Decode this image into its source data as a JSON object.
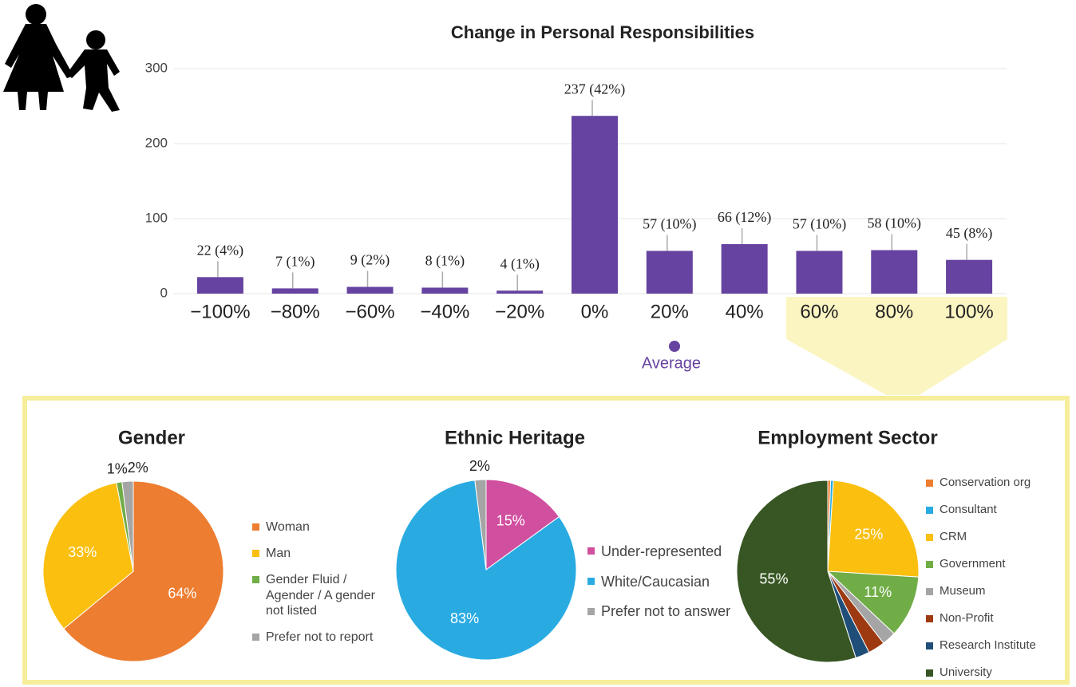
{
  "chart_data": [
    {
      "type": "bar",
      "title": "Change in Personal Responsibilities",
      "categories": [
        "−100%",
        "−80%",
        "−60%",
        "−40%",
        "−20%",
        "0%",
        "20%",
        "40%",
        "60%",
        "80%",
        "100%"
      ],
      "values": [
        22,
        7,
        9,
        8,
        4,
        237,
        57,
        66,
        57,
        58,
        45
      ],
      "value_labels": [
        "22 (4%)",
        "7 (1%)",
        "9 (2%)",
        "8 (1%)",
        "4 (1%)",
        "237 (42%)",
        "57 (10%)",
        "66 (12%)",
        "57 (10%)",
        "58 (10%)",
        "45 (8%)"
      ],
      "color": "#6643a0",
      "ylim": [
        0,
        300
      ],
      "yticks": [
        0,
        100,
        200,
        300
      ],
      "grid": true,
      "annotation": "Average"
    },
    {
      "type": "pie",
      "title": "Gender",
      "categories": [
        "Woman",
        "Man",
        "Gender Fluid / Agender / A gender not listed",
        "Prefer not to report"
      ],
      "values": [
        64,
        33,
        1,
        2
      ],
      "value_labels": [
        "64%",
        "33%",
        "1%",
        "2%"
      ],
      "colors": [
        "#ed7d31",
        "#fbbf10",
        "#70ad47",
        "#a5a5a5"
      ]
    },
    {
      "type": "pie",
      "title": "Ethnic Heritage",
      "categories": [
        "Under-represented",
        "White/Caucasian",
        "Prefer not to answer"
      ],
      "values": [
        15,
        83,
        2
      ],
      "value_labels": [
        "15%",
        "83%",
        "2%"
      ],
      "colors": [
        "#d14f9f",
        "#29abe2",
        "#a5a5a5"
      ]
    },
    {
      "type": "pie",
      "title": "Employment Sector",
      "categories": [
        "Conservation org",
        "Consultant",
        "CRM",
        "Government",
        "Museum",
        "Non-Profit",
        "Research Institute",
        "University"
      ],
      "values": [
        0.5,
        0.5,
        25,
        11,
        2.5,
        3,
        2.5,
        55
      ],
      "value_labels": [
        null,
        null,
        "25%",
        "11%",
        null,
        null,
        null,
        "55%"
      ],
      "colors": [
        "#ed7d31",
        "#29abe2",
        "#fbbf10",
        "#70ad47",
        "#a5a5a5",
        "#9e3a12",
        "#1f4e79",
        "#375623"
      ]
    }
  ]
}
